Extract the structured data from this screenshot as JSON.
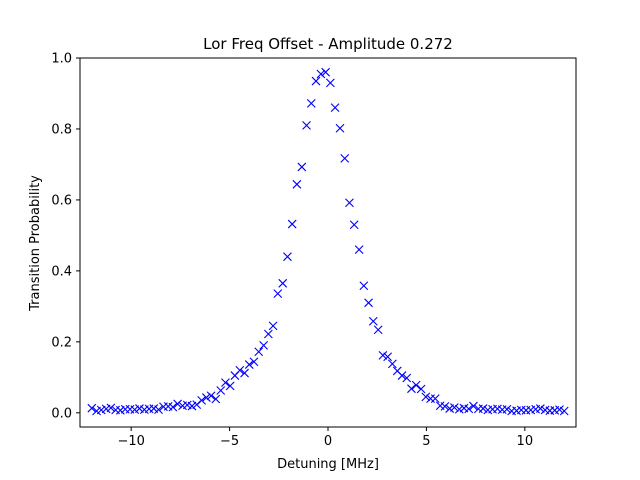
{
  "chart_data": {
    "type": "scatter",
    "title": "Lor Freq Offset - Amplitude 0.272",
    "xlabel": "Detuning [MHz]",
    "ylabel": "Transition Probability",
    "xlim": [
      -12.6,
      12.6
    ],
    "ylim": [
      -0.04,
      1.0
    ],
    "xticks": [
      -10,
      -5,
      0,
      5,
      10
    ],
    "xtick_labels": [
      "−10",
      "−5",
      "0",
      "5",
      "10"
    ],
    "yticks": [
      0.0,
      0.2,
      0.4,
      0.6,
      0.8,
      1.0
    ],
    "ytick_labels": [
      "0.0",
      "0.2",
      "0.4",
      "0.6",
      "0.8",
      "1.0"
    ],
    "grid": false,
    "marker": "x",
    "color": "#0000ff",
    "series": [
      {
        "x": [
          -12.0,
          -11.76,
          -11.52,
          -11.27,
          -11.03,
          -10.79,
          -10.55,
          -10.3,
          -10.06,
          -9.82,
          -9.58,
          -9.33,
          -9.09,
          -8.85,
          -8.61,
          -8.36,
          -8.12,
          -7.88,
          -7.64,
          -7.39,
          -7.15,
          -6.91,
          -6.67,
          -6.42,
          -6.18,
          -5.94,
          -5.7,
          -5.45,
          -5.21,
          -4.97,
          -4.73,
          -4.48,
          -4.24,
          -4.0,
          -3.76,
          -3.52,
          -3.27,
          -3.03,
          -2.79,
          -2.55,
          -2.3,
          -2.06,
          -1.82,
          -1.58,
          -1.33,
          -1.09,
          -0.85,
          -0.61,
          -0.36,
          -0.12,
          0.12,
          0.36,
          0.61,
          0.85,
          1.09,
          1.33,
          1.58,
          1.82,
          2.06,
          2.3,
          2.55,
          2.79,
          3.03,
          3.27,
          3.52,
          3.76,
          4.0,
          4.24,
          4.48,
          4.73,
          4.97,
          5.21,
          5.45,
          5.7,
          5.94,
          6.18,
          6.42,
          6.67,
          6.91,
          7.15,
          7.39,
          7.64,
          7.88,
          8.12,
          8.36,
          8.61,
          8.85,
          9.09,
          9.33,
          9.58,
          9.82,
          10.06,
          10.3,
          10.55,
          10.79,
          11.03,
          11.27,
          11.52,
          11.76,
          12.0
        ],
        "y": [
          0.013,
          0.005,
          0.008,
          0.011,
          0.014,
          0.008,
          0.007,
          0.01,
          0.01,
          0.009,
          0.012,
          0.009,
          0.011,
          0.012,
          0.009,
          0.017,
          0.018,
          0.016,
          0.025,
          0.02,
          0.022,
          0.019,
          0.023,
          0.035,
          0.043,
          0.048,
          0.039,
          0.063,
          0.085,
          0.076,
          0.105,
          0.12,
          0.112,
          0.136,
          0.144,
          0.172,
          0.19,
          0.222,
          0.245,
          0.336,
          0.365,
          0.44,
          0.532,
          0.644,
          0.693,
          0.81,
          0.872,
          0.935,
          0.955,
          0.96,
          0.93,
          0.86,
          0.802,
          0.717,
          0.592,
          0.53,
          0.46,
          0.358,
          0.31,
          0.258,
          0.234,
          0.162,
          0.158,
          0.138,
          0.118,
          0.105,
          0.098,
          0.068,
          0.078,
          0.067,
          0.045,
          0.04,
          0.04,
          0.02,
          0.018,
          0.012,
          0.015,
          0.01,
          0.013,
          0.011,
          0.019,
          0.011,
          0.012,
          0.008,
          0.01,
          0.011,
          0.009,
          0.01,
          0.005,
          0.006,
          0.008,
          0.007,
          0.008,
          0.01,
          0.012,
          0.008,
          0.006,
          0.007,
          0.009,
          0.005
        ]
      }
    ]
  }
}
